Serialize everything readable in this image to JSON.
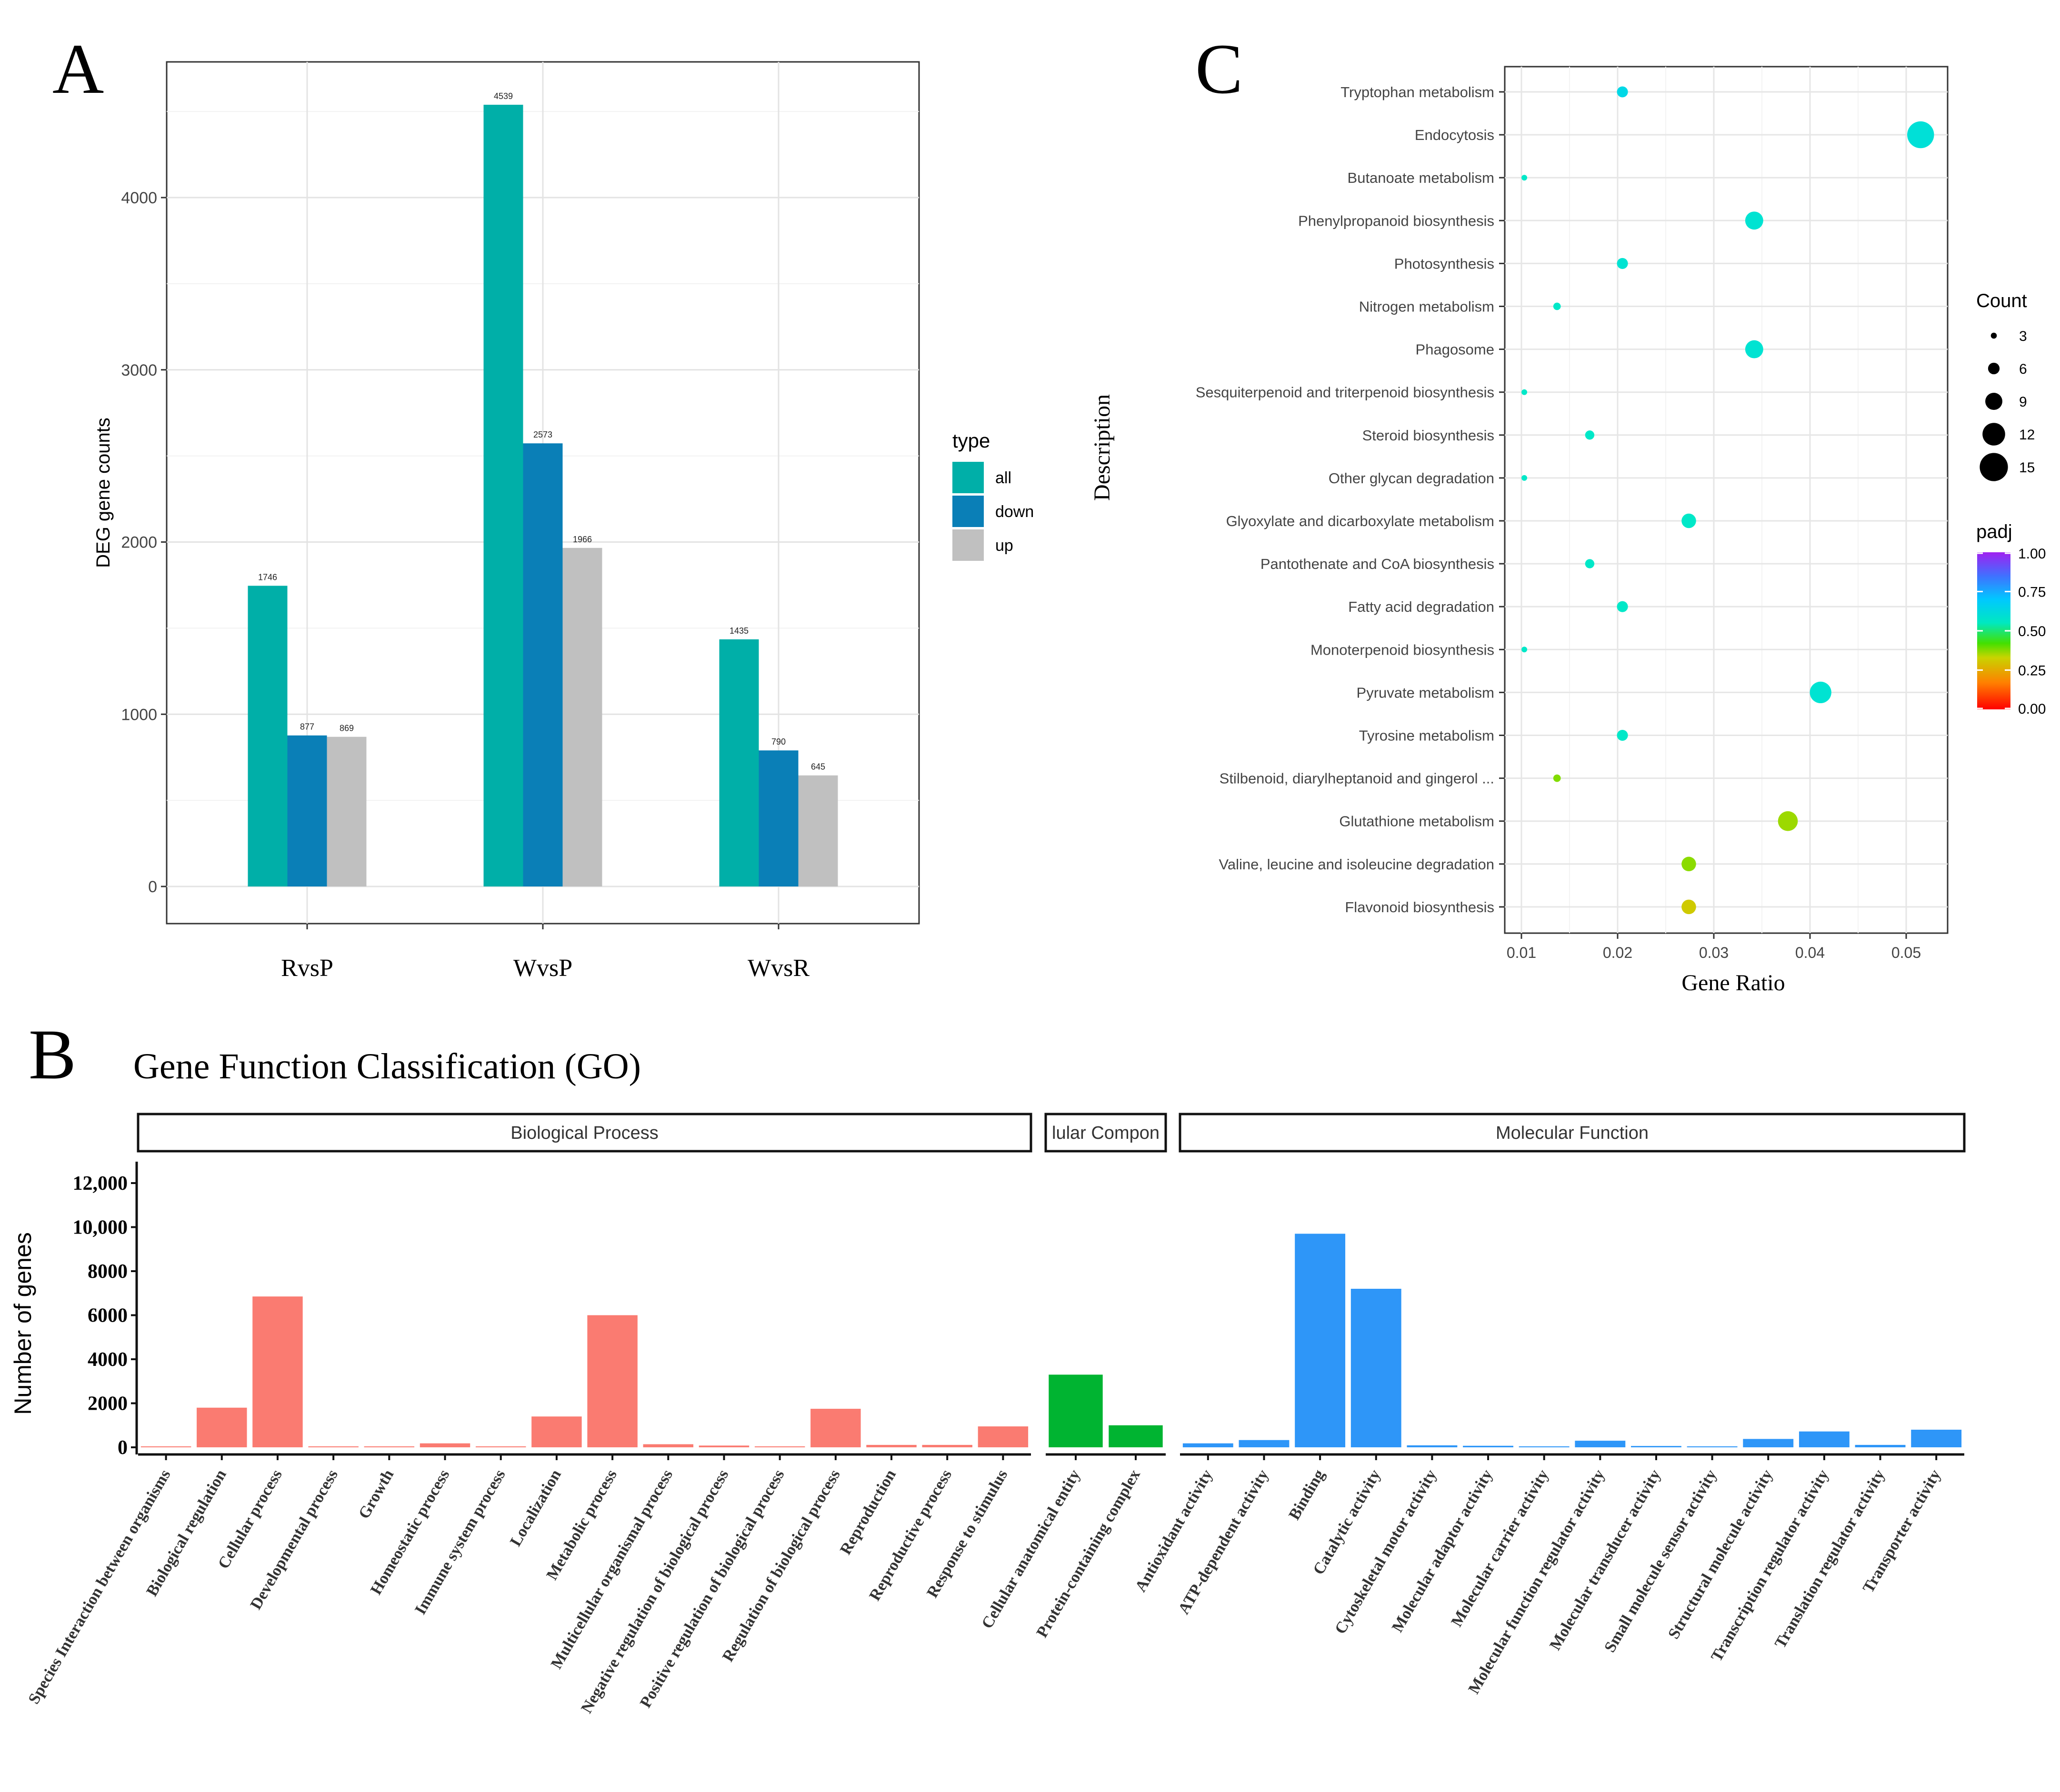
{
  "chart_data": [
    {
      "panel": "A",
      "type": "bar",
      "title": "",
      "xlabel": "",
      "ylabel": "DEG gene counts",
      "ylim": [
        0,
        4750
      ],
      "yticks": [
        0,
        1000,
        2000,
        3000,
        4000
      ],
      "grid": true,
      "legend_position": "right",
      "legend_title": "type",
      "categories": [
        "RvsP",
        "WvsP",
        "WvsR"
      ],
      "series": [
        {
          "name": "all",
          "color": "#00AFA8",
          "values": [
            1746,
            4539,
            1435
          ]
        },
        {
          "name": "down",
          "color": "#0A7FB7",
          "values": [
            877,
            2573,
            790
          ]
        },
        {
          "name": "up",
          "color": "#C0C0C0",
          "values": [
            869,
            1966,
            645
          ]
        }
      ]
    },
    {
      "panel": "B",
      "type": "bar",
      "title": "Gene Function Classification (GO)",
      "xlabel": "",
      "ylabel": "Number of genes",
      "ylim": [
        0,
        12000
      ],
      "yticks": [
        0,
        2000,
        4000,
        6000,
        8000,
        10000,
        12000
      ],
      "ytick_labels": [
        "0",
        "2000",
        "4000",
        "6000",
        "8000",
        "10,000",
        "12,000"
      ],
      "grid": false,
      "facets": [
        {
          "name": "Biological Process",
          "label": "Biological Process",
          "color": "#FA7B71",
          "categories": [
            "Species Interaction between organisms",
            "Biological regulation",
            "Cellular process",
            "Developmental process",
            "Growth",
            "Homeostatic process",
            "Immune system process",
            "Localization",
            "Metabolic process",
            "Multicellular organismal process",
            "Negative regulation of biological process",
            "Positive regulation of biological process",
            "Regulation of biological process",
            "Reproduction",
            "Reproductive process",
            "Response to stimulus"
          ],
          "values": [
            10,
            1800,
            6850,
            25,
            30,
            180,
            15,
            1400,
            6000,
            140,
            80,
            40,
            1750,
            110,
            110,
            950
          ]
        },
        {
          "name": "Cellular Component",
          "label": "lular Compon",
          "color": "#00B431",
          "categories": [
            "Cellular anatomical entity",
            "Protein-containing complex"
          ],
          "values": [
            3300,
            1000
          ]
        },
        {
          "name": "Molecular Function",
          "label": "Molecular Function",
          "color": "#2E96F8",
          "categories": [
            "Antioxidant activity",
            "ATP-dependent activity",
            "Binding",
            "Catalytic activity",
            "Cytoskeletal motor activity",
            "Molecular adaptor activity",
            "Molecular carrier activity",
            "Molecular function regulator activity",
            "Molecular transducer activity",
            "Small molecule sensor activity",
            "Structural molecule activity",
            "Transcription regulator activity",
            "Translation regulator activity",
            "Transporter activity"
          ],
          "values": [
            180,
            330,
            9700,
            7200,
            90,
            70,
            30,
            300,
            60,
            30,
            380,
            720,
            110,
            800
          ]
        }
      ]
    },
    {
      "panel": "C",
      "type": "scatter",
      "title": "",
      "xlabel": "Gene Ratio",
      "ylabel": "Description",
      "xlim": [
        0.008,
        0.053
      ],
      "xticks": [
        0.01,
        0.02,
        0.03,
        0.04,
        0.05
      ],
      "xtick_labels": [
        "0.01",
        "0.02",
        "0.03",
        "0.04",
        "0.05"
      ],
      "grid": true,
      "size_legend": {
        "title": "Count",
        "values": [
          3,
          6,
          9,
          12,
          15
        ]
      },
      "color_legend": {
        "title": "padj",
        "ticks": [
          0,
          0.25,
          0.5,
          0.75,
          1
        ],
        "tick_labels": [
          "0.00",
          "0.25",
          "0.50",
          "0.75",
          "1.00"
        ]
      },
      "points": [
        {
          "term": "Tryptophan metabolism",
          "gene_ratio": 0.0205,
          "count": 6,
          "padj": 0.58
        },
        {
          "term": "Endocytosis",
          "gene_ratio": 0.0515,
          "count": 15,
          "padj": 0.55
        },
        {
          "term": "Butanoate metabolism",
          "gene_ratio": 0.0103,
          "count": 3,
          "padj": 0.52
        },
        {
          "term": "Phenylpropanoid biosynthesis",
          "gene_ratio": 0.0342,
          "count": 10,
          "padj": 0.54
        },
        {
          "term": "Photosynthesis",
          "gene_ratio": 0.0205,
          "count": 6,
          "padj": 0.54
        },
        {
          "term": "Nitrogen metabolism",
          "gene_ratio": 0.0137,
          "count": 4,
          "padj": 0.52
        },
        {
          "term": "Phagosome",
          "gene_ratio": 0.0342,
          "count": 10,
          "padj": 0.54
        },
        {
          "term": "Sesquiterpenoid and triterpenoid biosynthesis",
          "gene_ratio": 0.0103,
          "count": 3,
          "padj": 0.52
        },
        {
          "term": "Steroid biosynthesis",
          "gene_ratio": 0.0171,
          "count": 5,
          "padj": 0.52
        },
        {
          "term": "Other glycan degradation",
          "gene_ratio": 0.0103,
          "count": 3,
          "padj": 0.52
        },
        {
          "term": "Glyoxylate and dicarboxylate metabolism",
          "gene_ratio": 0.0274,
          "count": 8,
          "padj": 0.52
        },
        {
          "term": "Pantothenate and CoA biosynthesis",
          "gene_ratio": 0.0171,
          "count": 5,
          "padj": 0.52
        },
        {
          "term": "Fatty acid degradation",
          "gene_ratio": 0.0205,
          "count": 6,
          "padj": 0.52
        },
        {
          "term": "Monoterpenoid biosynthesis",
          "gene_ratio": 0.0103,
          "count": 3,
          "padj": 0.52
        },
        {
          "term": "Pyruvate metabolism",
          "gene_ratio": 0.0411,
          "count": 12,
          "padj": 0.54
        },
        {
          "term": "Tyrosine metabolism",
          "gene_ratio": 0.0205,
          "count": 6,
          "padj": 0.52
        },
        {
          "term": "Stilbenoid, diarylheptanoid and gingerol ...",
          "gene_ratio": 0.0137,
          "count": 4,
          "padj": 0.33
        },
        {
          "term": "Glutathione metabolism",
          "gene_ratio": 0.0377,
          "count": 11,
          "padj": 0.3
        },
        {
          "term": "Valine, leucine and isoleucine degradation",
          "gene_ratio": 0.0274,
          "count": 8,
          "padj": 0.32
        },
        {
          "term": "Flavonoid biosynthesis",
          "gene_ratio": 0.0274,
          "count": 8,
          "padj": 0.24
        }
      ]
    }
  ],
  "panel_labels": {
    "a": "A",
    "b": "B",
    "c": "C"
  }
}
